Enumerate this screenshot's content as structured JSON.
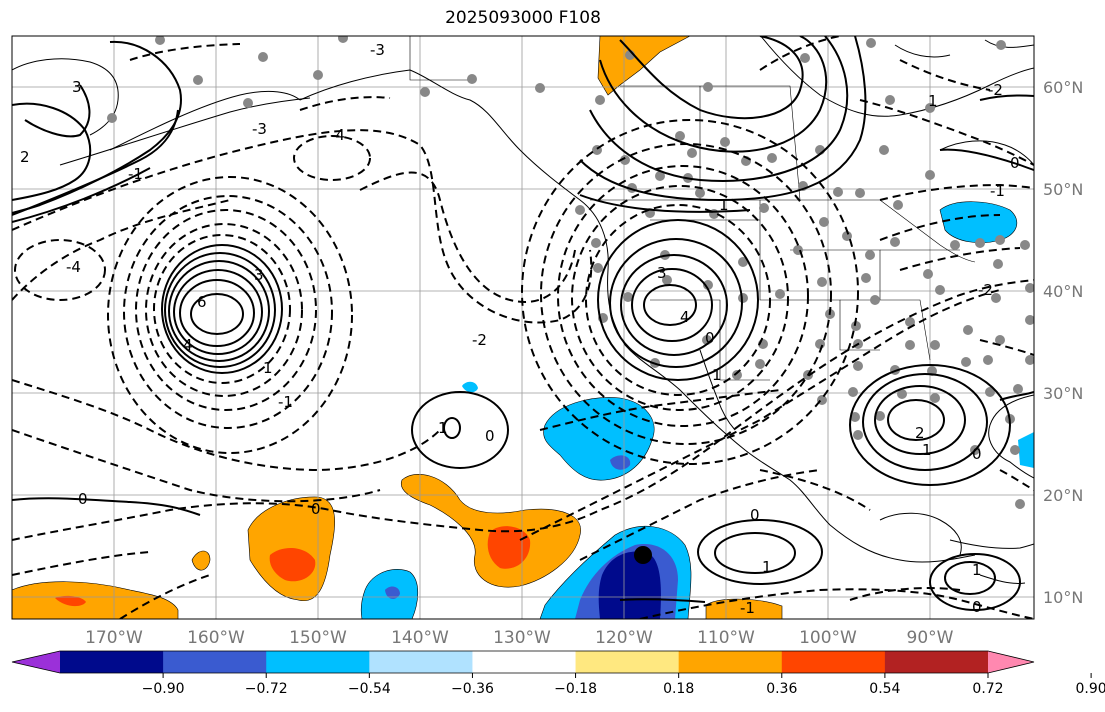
{
  "title": "2025093000 F108",
  "lon_labels": [
    "170°W",
    "160°W",
    "150°W",
    "140°W",
    "130°W",
    "120°W",
    "110°W",
    "100°W",
    "90°W"
  ],
  "lat_labels": [
    "60°N",
    "50°N",
    "40°N",
    "30°N",
    "20°N",
    "10°N"
  ],
  "colorbar": {
    "tick_labels": [
      "−0.90",
      "−0.72",
      "−0.54",
      "−0.36",
      "−0.18",
      "0.18",
      "0.36",
      "0.54",
      "0.72",
      "0.90"
    ],
    "colors": [
      "#9b30d9",
      "#000a8c",
      "#3a5bd0",
      "#00bfff",
      "#b0e2ff",
      "#ffffff",
      "#ffe880",
      "#ffa500",
      "#ff4500",
      "#b22222",
      "#ff88b0"
    ]
  },
  "contour_labels": {
    "solid": [
      "6",
      "4",
      "3",
      "3",
      "4",
      "3",
      "1",
      "0",
      "0",
      "0",
      "1",
      "2",
      "1",
      "0",
      "1",
      "1",
      "0",
      "1",
      "2",
      "0",
      "1",
      "1",
      "0"
    ],
    "dashed": [
      "-4",
      "-2",
      "-4",
      "-3",
      "-3",
      "-2",
      "-1",
      "-2",
      "-1",
      "-1",
      "0",
      "-1"
    ]
  },
  "fill_colors": {
    "orange": "#ffa500",
    "red_orange": "#ff4500",
    "light_blue": "#00bfff",
    "medium_blue": "#3a5bd0",
    "dark_blue": "#000a8c"
  }
}
